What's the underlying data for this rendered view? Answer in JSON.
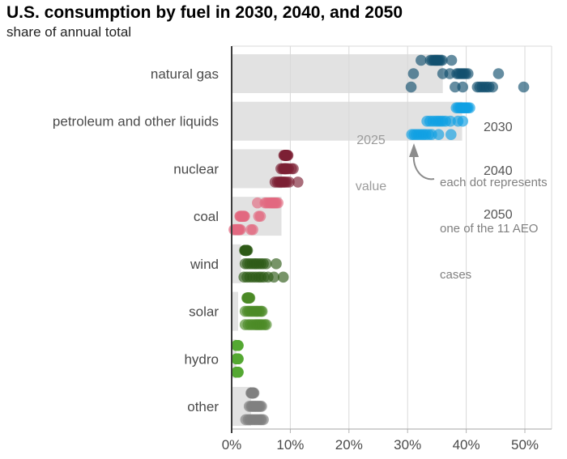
{
  "page": {
    "title": "U.S. consumption by fuel in 2030, 2040, and 2050",
    "subtitle": "share of annual total"
  },
  "labels": {
    "bar_value_note": [
      "2025",
      "value"
    ],
    "year_legend": [
      "2030",
      "2040",
      "2050"
    ],
    "dot_note": [
      "each dot represents",
      "one of the 11 AEO",
      "cases"
    ]
  },
  "colors": {
    "bar_2025": "#e2e2e2",
    "grid": "#d9d9d9",
    "axis_left": "#3c3c3c",
    "axis_bottom": "#a6a6a6",
    "tick": "#b3b3b3",
    "label_text": "#4a4a4a",
    "muted_text": "#9b9b9b",
    "note_text": "#808080",
    "arrow": "#8c8c8c"
  },
  "chart_data": {
    "type": "scatter",
    "title": "U.S. consumption by fuel in 2030, 2040, and 2050",
    "subtitle": "share of annual total",
    "unit": "percent share of annual total",
    "legend_position": "right of petroleum row",
    "grid": true,
    "x_ticks": [
      "0%",
      "10%",
      "20%",
      "30%",
      "40%",
      "50%"
    ],
    "x_tick_values": [
      0,
      10,
      20,
      30,
      40,
      50
    ],
    "xlim": [
      0,
      54.5
    ],
    "years": [
      "2030",
      "2040",
      "2050"
    ],
    "cases_per_year": 11,
    "bar_meaning": "2025 value",
    "dot_meaning": "each dot represents one of the 11 AEO cases",
    "fuels": [
      {
        "label": "natural gas",
        "color": "#12506e",
        "value_2025": 36.0,
        "values_2030": [
          32.3,
          33.9,
          34.2,
          34.5,
          34.7,
          34.9,
          35.1,
          35.3,
          35.6,
          35.9,
          37.5
        ],
        "values_2040": [
          31.0,
          36.0,
          37.2,
          38.4,
          38.7,
          39.0,
          39.3,
          39.6,
          39.9,
          40.3,
          45.5
        ],
        "values_2050": [
          30.6,
          38.1,
          39.4,
          41.9,
          42.3,
          42.7,
          43.1,
          43.5,
          43.9,
          44.5,
          49.8
        ]
      },
      {
        "label": "petroleum and other liquids",
        "color": "#109fe3",
        "value_2025": 39.3,
        "values_2030": [
          38.3,
          38.6,
          38.9,
          39.1,
          39.3,
          39.5,
          39.7,
          39.9,
          40.1,
          40.3,
          40.6
        ],
        "values_2040": [
          33.3,
          33.8,
          34.3,
          34.8,
          35.2,
          35.6,
          36.0,
          36.5,
          37.3,
          38.6,
          39.4
        ],
        "values_2050": [
          30.7,
          31.1,
          31.5,
          31.9,
          32.3,
          32.7,
          33.1,
          33.6,
          34.1,
          35.3,
          37.4
        ]
      },
      {
        "label": "nuclear",
        "color": "#7d2034",
        "value_2025": 8.6,
        "values_2030": [
          8.9,
          9.0,
          9.1,
          9.1,
          9.2,
          9.2,
          9.3,
          9.3,
          9.4,
          9.5,
          9.6
        ],
        "values_2040": [
          8.4,
          8.7,
          8.9,
          9.0,
          9.1,
          9.2,
          9.3,
          9.5,
          9.7,
          10.2,
          10.5
        ],
        "values_2050": [
          7.4,
          7.8,
          8.1,
          8.3,
          8.5,
          8.7,
          8.9,
          9.1,
          9.4,
          9.8,
          11.3
        ]
      },
      {
        "label": "coal",
        "color": "#e2697f",
        "value_2025": 8.5,
        "values_2030": [
          4.4,
          5.7,
          6.0,
          6.3,
          6.6,
          6.8,
          7.0,
          7.2,
          7.4,
          7.6,
          7.9
        ],
        "values_2040": [
          1.4,
          1.5,
          1.6,
          1.7,
          1.8,
          1.9,
          2.0,
          2.1,
          2.2,
          4.6,
          4.9
        ],
        "values_2050": [
          0.4,
          0.6,
          0.8,
          0.9,
          1.0,
          1.1,
          1.2,
          1.3,
          1.5,
          3.3,
          3.6
        ]
      },
      {
        "label": "wind",
        "color": "#2e5a17",
        "value_2025": 1.6,
        "values_2030": [
          2.2,
          2.3,
          2.3,
          2.4,
          2.4,
          2.4,
          2.5,
          2.5,
          2.5,
          2.6,
          2.7
        ],
        "values_2040": [
          2.3,
          2.7,
          3.1,
          3.5,
          3.9,
          4.2,
          4.6,
          5.0,
          5.4,
          5.9,
          7.6
        ],
        "values_2050": [
          2.1,
          2.6,
          3.1,
          3.6,
          4.1,
          4.6,
          5.0,
          5.5,
          6.2,
          7.2,
          8.8
        ]
      },
      {
        "label": "solar",
        "color": "#4c8a27",
        "value_2025": 1.1,
        "values_2030": [
          2.6,
          2.7,
          2.7,
          2.8,
          2.8,
          2.8,
          2.9,
          2.9,
          3.0,
          3.0,
          3.1
        ],
        "values_2040": [
          2.3,
          2.7,
          3.0,
          3.3,
          3.6,
          3.9,
          4.2,
          4.4,
          4.7,
          5.0,
          5.2
        ],
        "values_2050": [
          2.3,
          2.8,
          3.2,
          3.6,
          4.0,
          4.3,
          4.6,
          4.9,
          5.2,
          5.6,
          5.9
        ]
      },
      {
        "label": "hydro",
        "color": "#55a733",
        "value_2025": 0.8,
        "values_2030": [
          0.8,
          0.9,
          0.9,
          0.9,
          1.0,
          1.0,
          1.0,
          1.0,
          1.1,
          1.1,
          1.1
        ],
        "values_2040": [
          0.8,
          0.9,
          0.9,
          0.9,
          1.0,
          1.0,
          1.0,
          1.0,
          1.1,
          1.1,
          1.1
        ],
        "values_2050": [
          0.8,
          0.9,
          0.9,
          0.9,
          1.0,
          1.0,
          1.0,
          1.0,
          1.1,
          1.1,
          1.1
        ]
      },
      {
        "label": "other",
        "color": "#7f7f7f",
        "value_2025": 3.3,
        "values_2030": [
          3.3,
          3.4,
          3.4,
          3.5,
          3.5,
          3.5,
          3.6,
          3.6,
          3.6,
          3.7,
          3.8
        ],
        "values_2040": [
          3.0,
          3.3,
          3.5,
          3.7,
          3.9,
          4.1,
          4.3,
          4.5,
          4.7,
          4.9,
          5.1
        ],
        "values_2050": [
          2.4,
          2.8,
          3.1,
          3.4,
          3.7,
          4.0,
          4.3,
          4.6,
          4.9,
          5.1,
          5.4
        ]
      }
    ]
  }
}
